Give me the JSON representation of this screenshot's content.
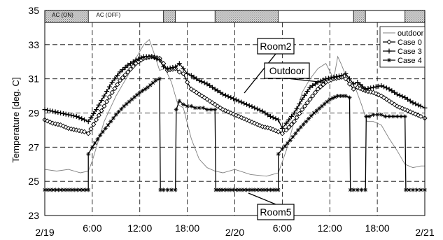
{
  "chart_data": {
    "type": "line",
    "title": "",
    "xlabel": "",
    "ylabel": "Temperature  [deg. C]",
    "ylim": [
      23,
      35
    ],
    "xlim": [
      0,
      48
    ],
    "x_unit": "hours from 2/19 0:00",
    "grid": true,
    "legend_position": "top-right",
    "x_tick_labels": [
      {
        "x": 0,
        "label": "2/19"
      },
      {
        "x": 6,
        "label": "6:00"
      },
      {
        "x": 12,
        "label": "12:00"
      },
      {
        "x": 18,
        "label": "18:00"
      },
      {
        "x": 24,
        "label": "2/20"
      },
      {
        "x": 30,
        "label": "6:00"
      },
      {
        "x": 36,
        "label": "12:00"
      },
      {
        "x": 42,
        "label": "18:00"
      },
      {
        "x": 48,
        "label": "2/21"
      }
    ],
    "y_ticks": [
      23,
      25,
      27,
      29,
      31,
      33,
      35
    ],
    "ac_schedule": {
      "labels": {
        "on": "AC (ON)",
        "off": "AC (OFF)"
      },
      "on_periods": [
        [
          0,
          5.5
        ],
        [
          15,
          16.5
        ],
        [
          21.5,
          29.5
        ],
        [
          39,
          40.5
        ],
        [
          45.5,
          48
        ]
      ]
    },
    "legend": [
      "outdoor",
      "Case 0",
      "Case 3",
      "Case 4"
    ],
    "series": [
      {
        "name": "outdoor",
        "color": "#808080",
        "marker": "none",
        "x": [
          0,
          1.5,
          3,
          4.5,
          5.5,
          6,
          7.5,
          9,
          10.5,
          11.5,
          12.5,
          13.2,
          13.8,
          14.5,
          15.2,
          16,
          16.8,
          17.5,
          18.5,
          19.5,
          20.5,
          21.5,
          22.5,
          24,
          26,
          28,
          29.5,
          30.5,
          31.5,
          32.5,
          33.5,
          34.5,
          35.5,
          36.5,
          37,
          37.5,
          38,
          38.5,
          39.2,
          40,
          40.7,
          41.5,
          42.5,
          43.5,
          44.5,
          45.5,
          46.5,
          47.5,
          48
        ],
        "y": [
          25.7,
          25.6,
          25.7,
          25.5,
          25.6,
          26.2,
          28.5,
          30.0,
          31.2,
          32.2,
          33.0,
          33.3,
          32.5,
          31.5,
          31.6,
          30.8,
          29.5,
          29.3,
          27.5,
          26.3,
          25.8,
          25.6,
          25.5,
          25.7,
          25.4,
          25.3,
          25.5,
          26.8,
          28.5,
          30.2,
          31.0,
          31.6,
          31.9,
          31.0,
          32.3,
          31.8,
          31.2,
          31.0,
          30.5,
          29.5,
          28.5,
          28.5,
          28.3,
          27.5,
          26.8,
          26.0,
          25.8,
          25.9,
          25.9
        ]
      },
      {
        "name": "Case 0",
        "color": "#000000",
        "marker": "diamond",
        "x": [
          0,
          1,
          2,
          3,
          4,
          5,
          5.5,
          6.5,
          7.5,
          8.5,
          9.5,
          10.5,
          11.5,
          12.5,
          13.5,
          14.5,
          15,
          15.5,
          16.5,
          17,
          17.5,
          18,
          18.5,
          19.5,
          20.5,
          21.5,
          22.5,
          23.5,
          24.5,
          25.5,
          26.5,
          27.5,
          28.5,
          29.5,
          30,
          30.5,
          31.5,
          32.5,
          33.5,
          34.5,
          35.5,
          36.5,
          37.5,
          38,
          38.5,
          39,
          39.5,
          40.5,
          41.5,
          42.5,
          43.5,
          44.5,
          45.5,
          46.5,
          47.5,
          48
        ],
        "y": [
          28.6,
          28.4,
          28.3,
          28.1,
          28.0,
          27.9,
          27.8,
          28.6,
          29.4,
          30.2,
          30.9,
          31.4,
          31.9,
          32.2,
          32.3,
          32.2,
          31.9,
          31.5,
          31.6,
          31.4,
          31.3,
          30.8,
          30.4,
          30.1,
          29.8,
          29.5,
          29.2,
          29.0,
          28.8,
          28.6,
          28.4,
          28.2,
          28.1,
          27.9,
          27.8,
          28.0,
          28.5,
          29.2,
          29.8,
          30.4,
          30.8,
          31.0,
          31.1,
          31.0,
          30.7,
          30.4,
          30.5,
          30.3,
          30.2,
          30.0,
          29.7,
          29.4,
          29.2,
          29.0,
          28.8,
          28.7
        ]
      },
      {
        "name": "Case 3",
        "color": "#000000",
        "marker": "plus",
        "x": [
          0,
          1,
          2,
          3,
          4,
          5,
          5.5,
          6.5,
          7.5,
          8.5,
          9.5,
          10.5,
          11.5,
          12.5,
          13.5,
          14.5,
          15,
          15.5,
          16.5,
          17,
          17.5,
          18,
          18.5,
          19.5,
          20.5,
          21.5,
          22.5,
          23.5,
          24.5,
          25.5,
          26.5,
          27.5,
          28.5,
          29.5,
          30,
          30.5,
          31.5,
          32.5,
          33.5,
          34.5,
          35.5,
          36.5,
          37.5,
          38,
          38.5,
          39,
          39.5,
          40.5,
          41.5,
          42.5,
          43.5,
          44.5,
          45.5,
          46.5,
          47.5,
          48
        ],
        "y": [
          29.2,
          29.1,
          29.0,
          28.9,
          28.8,
          28.6,
          28.5,
          29.2,
          30.0,
          30.8,
          31.4,
          31.8,
          32.1,
          32.3,
          32.3,
          32.1,
          31.7,
          31.6,
          31.7,
          31.9,
          31.6,
          31.3,
          31.2,
          30.9,
          30.7,
          30.4,
          30.1,
          29.9,
          29.7,
          29.5,
          29.3,
          29.1,
          28.8,
          28.6,
          28.1,
          28.4,
          29.0,
          29.8,
          30.5,
          30.8,
          31.0,
          31.1,
          31.2,
          31.3,
          31.0,
          30.7,
          30.8,
          30.4,
          30.5,
          30.6,
          30.4,
          30.1,
          29.9,
          29.6,
          29.4,
          29.3
        ]
      },
      {
        "name": "Case 4",
        "color": "#000000",
        "marker": "star",
        "x": [
          0,
          5.5,
          5.5,
          6,
          7,
          8,
          9,
          10,
          11,
          12,
          13,
          14,
          14.5,
          14.6,
          15,
          15.5,
          16,
          16.5,
          16.6,
          17,
          17.5,
          18,
          18.5,
          19,
          19.5,
          20,
          20.5,
          21,
          21.5,
          21.6,
          22.5,
          23.5,
          24.5,
          25.5,
          26.5,
          27.5,
          28.5,
          29.5,
          29.5,
          30,
          31,
          32,
          33,
          34,
          35,
          36,
          37,
          38,
          38.5,
          38.6,
          39,
          39.5,
          40,
          40.5,
          40.6,
          41,
          41.5,
          42,
          42.5,
          43,
          43.5,
          44,
          44.5,
          45,
          45.5,
          45.6,
          46,
          46.5,
          47,
          47.5,
          48
        ],
        "y": [
          24.5,
          24.5,
          26.6,
          27.0,
          27.7,
          28.3,
          28.9,
          29.4,
          29.8,
          30.2,
          30.5,
          30.9,
          31.0,
          24.5,
          24.5,
          24.5,
          24.5,
          24.5,
          29.2,
          29.7,
          29.5,
          29.4,
          29.4,
          29.3,
          29.3,
          29.3,
          29.2,
          29.2,
          29.2,
          24.5,
          24.5,
          24.5,
          24.5,
          24.5,
          24.5,
          24.5,
          24.5,
          24.5,
          26.6,
          26.9,
          27.4,
          28.0,
          28.5,
          29.0,
          29.4,
          29.8,
          30.0,
          30.0,
          29.9,
          24.5,
          24.5,
          24.5,
          24.5,
          24.5,
          28.8,
          28.8,
          28.9,
          28.9,
          28.9,
          28.8,
          28.8,
          28.8,
          28.8,
          28.8,
          28.8,
          24.5,
          24.5,
          24.5,
          24.5,
          24.5,
          24.5
        ]
      }
    ],
    "annotations": [
      {
        "text": "Room2",
        "x": 23,
        "y": 29.7
      },
      {
        "text": "Outdoor",
        "x": 34.5,
        "y": 31.6
      },
      {
        "text": "Room5",
        "x": 31,
        "y": 24.4
      }
    ]
  }
}
